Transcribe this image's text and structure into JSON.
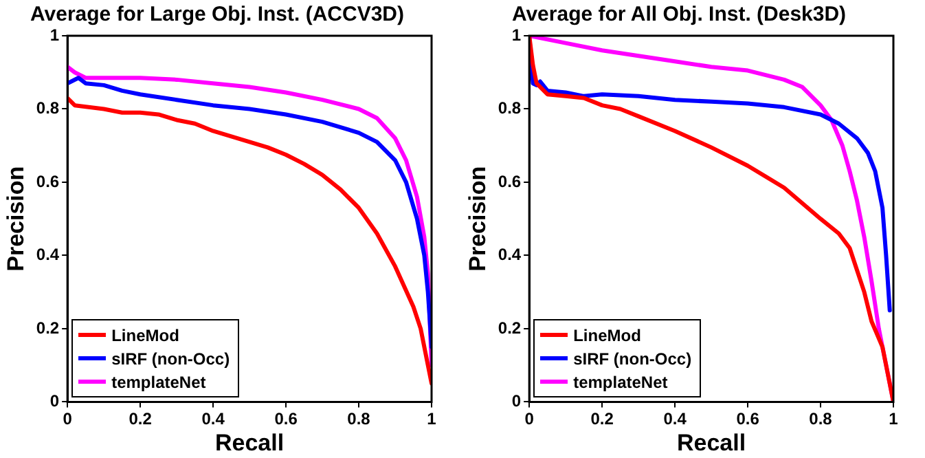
{
  "chart_data": [
    {
      "type": "line",
      "title": "Average for Large Obj. Inst. (ACCV3D)",
      "xlabel": "Recall",
      "ylabel": "Precision",
      "xlim": [
        0,
        1
      ],
      "ylim": [
        0,
        1
      ],
      "xticks": [
        0,
        0.2,
        0.4,
        0.6,
        0.8,
        1
      ],
      "yticks": [
        0,
        0.2,
        0.4,
        0.6,
        0.8,
        1
      ],
      "grid": false,
      "legend": "bottom left",
      "marker": "none",
      "line_style": "solid",
      "series": [
        {
          "name": "LineMod",
          "color": "#ff0000",
          "x": [
            0,
            0.01,
            0.02,
            0.1,
            0.15,
            0.2,
            0.25,
            0.3,
            0.35,
            0.4,
            0.45,
            0.5,
            0.55,
            0.6,
            0.65,
            0.7,
            0.75,
            0.8,
            0.85,
            0.9,
            0.95,
            0.97,
            0.99,
            1
          ],
          "values": [
            0.83,
            0.82,
            0.81,
            0.8,
            0.79,
            0.79,
            0.785,
            0.77,
            0.76,
            0.74,
            0.725,
            0.71,
            0.695,
            0.675,
            0.65,
            0.62,
            0.58,
            0.53,
            0.46,
            0.37,
            0.26,
            0.2,
            0.1,
            0.05
          ]
        },
        {
          "name": "sIRF (non-Occ)",
          "color": "#0000ff",
          "x": [
            0,
            0.03,
            0.05,
            0.1,
            0.15,
            0.2,
            0.3,
            0.4,
            0.5,
            0.6,
            0.7,
            0.8,
            0.85,
            0.9,
            0.93,
            0.96,
            0.98,
            0.99,
            1
          ],
          "values": [
            0.87,
            0.885,
            0.87,
            0.865,
            0.85,
            0.84,
            0.825,
            0.81,
            0.8,
            0.785,
            0.765,
            0.735,
            0.71,
            0.66,
            0.6,
            0.5,
            0.4,
            0.3,
            0.15
          ]
        },
        {
          "name": "templateNet",
          "color": "#ff00ff",
          "x": [
            0,
            0.02,
            0.05,
            0.1,
            0.2,
            0.3,
            0.4,
            0.5,
            0.6,
            0.7,
            0.8,
            0.85,
            0.9,
            0.93,
            0.96,
            0.98,
            0.99,
            1
          ],
          "values": [
            0.915,
            0.9,
            0.885,
            0.885,
            0.885,
            0.88,
            0.87,
            0.86,
            0.845,
            0.825,
            0.8,
            0.775,
            0.72,
            0.66,
            0.56,
            0.45,
            0.35,
            0.1
          ]
        }
      ]
    },
    {
      "type": "line",
      "title": "Average for All Obj. Inst. (Desk3D)",
      "xlabel": "Recall",
      "ylabel": "Precision",
      "xlim": [
        0,
        1
      ],
      "ylim": [
        0,
        1
      ],
      "xticks": [
        0,
        0.2,
        0.4,
        0.6,
        0.8,
        1
      ],
      "yticks": [
        0,
        0.2,
        0.4,
        0.6,
        0.8,
        1
      ],
      "grid": false,
      "legend": "bottom left",
      "marker": "none",
      "line_style": "solid",
      "series": [
        {
          "name": "LineMod",
          "color": "#ff0000",
          "x": [
            0,
            0.01,
            0.02,
            0.05,
            0.1,
            0.15,
            0.2,
            0.25,
            0.3,
            0.4,
            0.5,
            0.6,
            0.7,
            0.8,
            0.85,
            0.88,
            0.9,
            0.92,
            0.94,
            0.97,
            1
          ],
          "values": [
            1,
            0.92,
            0.87,
            0.84,
            0.835,
            0.83,
            0.81,
            0.8,
            0.78,
            0.74,
            0.695,
            0.645,
            0.585,
            0.5,
            0.46,
            0.42,
            0.36,
            0.3,
            0.22,
            0.15,
            0
          ]
        },
        {
          "name": "sIRF (non-Occ)",
          "color": "#0000ff",
          "x": [
            0,
            0.01,
            0.02,
            0.03,
            0.05,
            0.1,
            0.15,
            0.2,
            0.3,
            0.4,
            0.5,
            0.6,
            0.7,
            0.8,
            0.85,
            0.9,
            0.93,
            0.95,
            0.97,
            0.98,
            0.99
          ],
          "values": [
            1,
            0.87,
            0.865,
            0.875,
            0.85,
            0.845,
            0.835,
            0.84,
            0.835,
            0.825,
            0.82,
            0.815,
            0.805,
            0.785,
            0.76,
            0.72,
            0.68,
            0.63,
            0.53,
            0.4,
            0.25
          ]
        },
        {
          "name": "templateNet",
          "color": "#ff00ff",
          "x": [
            0,
            0.1,
            0.2,
            0.3,
            0.4,
            0.5,
            0.6,
            0.7,
            0.75,
            0.8,
            0.83,
            0.86,
            0.88,
            0.9,
            0.92,
            0.94,
            0.96,
            0.98,
            1
          ],
          "values": [
            1,
            0.98,
            0.96,
            0.945,
            0.93,
            0.915,
            0.905,
            0.88,
            0.86,
            0.81,
            0.77,
            0.7,
            0.63,
            0.55,
            0.45,
            0.33,
            0.2,
            0.1,
            0
          ]
        }
      ]
    }
  ]
}
